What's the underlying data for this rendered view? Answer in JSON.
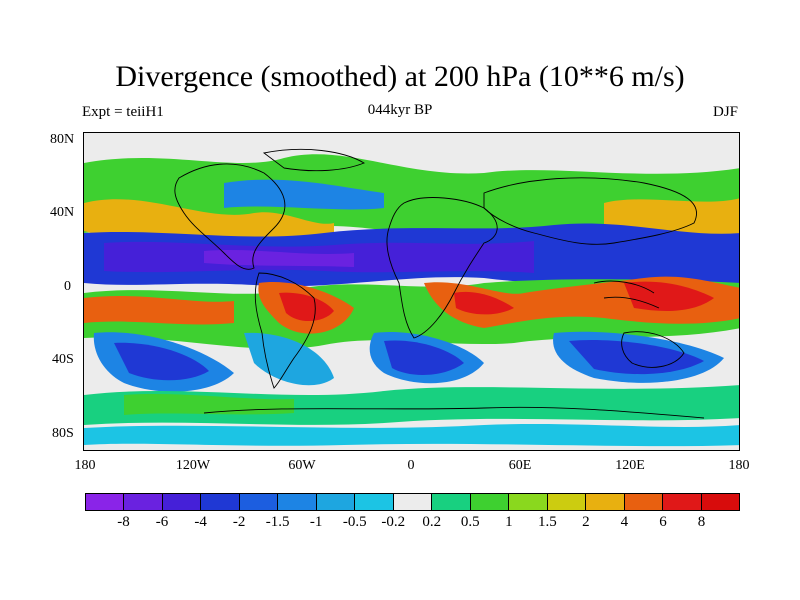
{
  "title": "Divergence (smoothed) at 200 hPa (10**6 m/s)",
  "left_label": "Expt = teiiH1",
  "center_label": "044kyr BP",
  "right_label": "DJF",
  "lat_ticks": [
    "80N",
    "40N",
    "0",
    "40S",
    "80S"
  ],
  "lon_ticks": [
    "180",
    "120W",
    "60W",
    "0",
    "60E",
    "120E",
    "180"
  ],
  "colorbar": {
    "labels": [
      "-8",
      "-6",
      "-4",
      "-2",
      "-1.5",
      "-1",
      "-0.5",
      "-0.2",
      "0.2",
      "0.5",
      "1",
      "1.5",
      "2",
      "4",
      "6",
      "8"
    ],
    "colors": [
      "#8a24e8",
      "#6a22e0",
      "#4520d8",
      "#1f38d4",
      "#1c5ee0",
      "#1d84e4",
      "#1ea6e0",
      "#1cc4e4",
      "#ececec",
      "#18d080",
      "#3ed030",
      "#8ad81e",
      "#cccc10",
      "#e8b010",
      "#e86010",
      "#e01818",
      "#d80c0c"
    ]
  }
}
